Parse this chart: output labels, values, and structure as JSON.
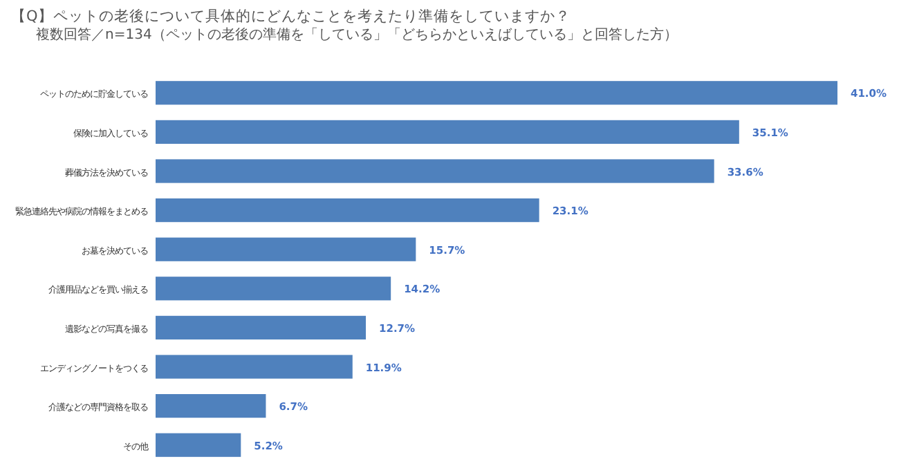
{
  "chart_data": {
    "type": "bar",
    "orientation": "horizontal",
    "title": "【Q】ペットの老後について具体的にどんなことを考えたり準備をしていますか？",
    "subtitle": "複数回答／n=134（ペットの老後の準備を「している」「どちらかといえばしている」と回答した方）",
    "categories": [
      "ペットのために貯金している",
      "保険に加入している",
      "葬儀方法を決めている",
      "緊急連絡先や病院の情報をまとめる",
      "お墓を決めている",
      "介護用品などを買い揃える",
      "遺影などの写真を撮る",
      "エンディングノートをつくる",
      "介護などの専門資格を取る",
      "その他"
    ],
    "values": [
      41.0,
      35.1,
      33.6,
      23.1,
      15.7,
      14.2,
      12.7,
      11.9,
      6.7,
      5.2
    ],
    "value_labels": [
      "41.0%",
      "35.1%",
      "33.6%",
      "23.1%",
      "15.7%",
      "14.2%",
      "12.7%",
      "11.9%",
      "6.7%",
      "5.2%"
    ],
    "color": "#4f81bd"
  }
}
